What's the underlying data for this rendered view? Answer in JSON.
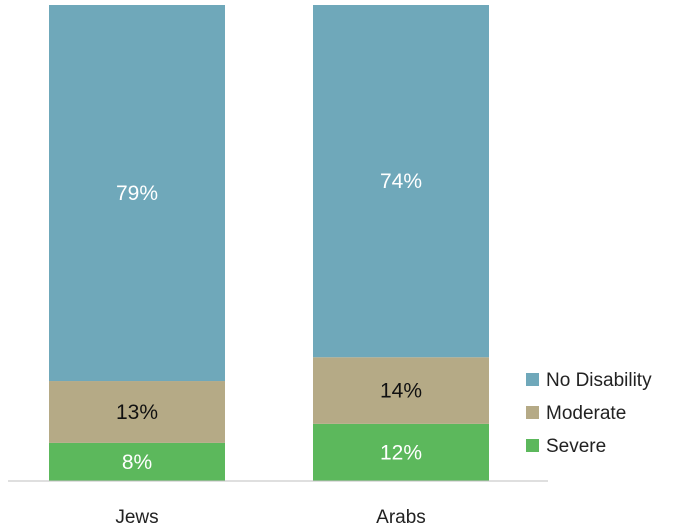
{
  "chart_data": {
    "type": "bar",
    "stacked": true,
    "title": "",
    "xlabel": "",
    "ylabel": "",
    "ylim": [
      0,
      100
    ],
    "grid": false,
    "legend_position": "right",
    "categories": [
      "Jews",
      "Arabs"
    ],
    "series": [
      {
        "name": "Severe",
        "values": [
          8,
          12
        ],
        "labels": [
          "8%",
          "12%"
        ],
        "color": "#5cb85c",
        "label_color": "#ffffff"
      },
      {
        "name": "Moderate",
        "values": [
          13,
          14
        ],
        "labels": [
          "13%",
          "14%"
        ],
        "color": "#b5aa86",
        "label_color": "#111111"
      },
      {
        "name": "No Disability",
        "values": [
          79,
          74
        ],
        "labels": [
          "79%",
          "74%"
        ],
        "color": "#6fa8ba",
        "label_color": "#ffffff"
      }
    ],
    "legend_order": [
      "No Disability",
      "Moderate",
      "Severe"
    ]
  }
}
